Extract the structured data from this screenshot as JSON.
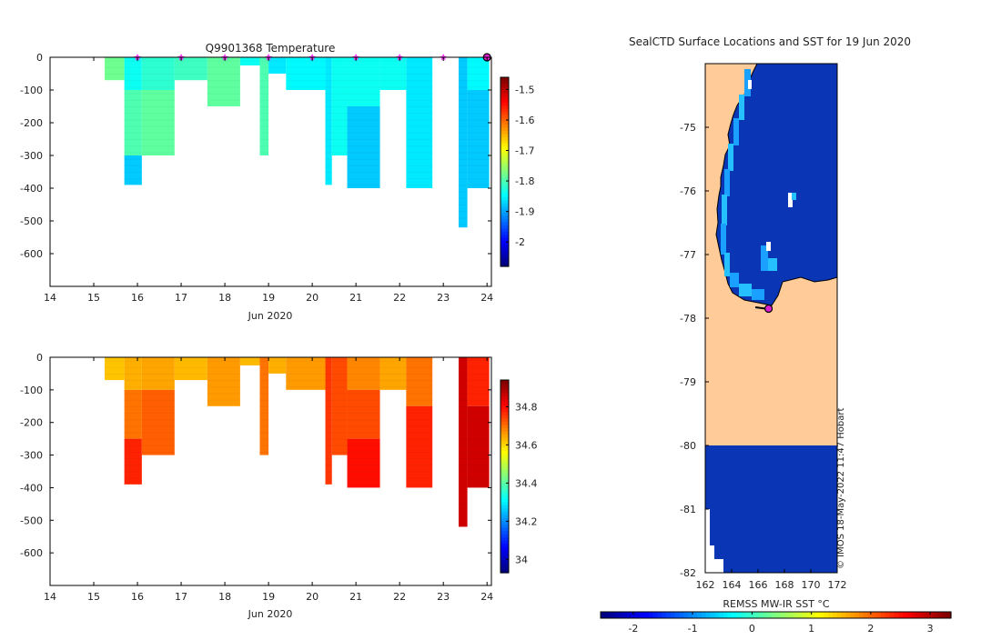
{
  "chart_data": [
    {
      "type": "heatmap",
      "title": "Q9901368  Temperature",
      "xlabel": "Jun 2020",
      "ylabel": "",
      "xlim": [
        14,
        24.1
      ],
      "ylim": [
        -700,
        0
      ],
      "x_ticks": [
        "14",
        "15",
        "16",
        "17",
        "18",
        "19",
        "20",
        "21",
        "22",
        "23",
        "24"
      ],
      "y_ticks": [
        "0",
        "-100",
        "-200",
        "-300",
        "-400",
        "-500",
        "-600"
      ],
      "colorbar_ticks": [
        "-1.5",
        "-1.6",
        "-1.7",
        "-1.8",
        "-1.9",
        "-2"
      ],
      "colorbar_range": [
        -2.08,
        -1.46
      ],
      "colormap": "jet",
      "marker_days": [
        16,
        17,
        18,
        19,
        20,
        21,
        22,
        23,
        24
      ],
      "profiles": [
        {
          "start": 15.25,
          "end": 15.7,
          "max_depth": 70,
          "layers": [
            [
              0,
              70,
              -1.78
            ]
          ]
        },
        {
          "start": 15.7,
          "end": 16.1,
          "max_depth": 390,
          "layers": [
            [
              0,
              100,
              -1.84
            ],
            [
              100,
              300,
              -1.8
            ],
            [
              300,
              390,
              -1.88
            ]
          ]
        },
        {
          "start": 16.1,
          "end": 16.85,
          "max_depth": 300,
          "layers": [
            [
              0,
              100,
              -1.82
            ],
            [
              100,
              300,
              -1.79
            ]
          ]
        },
        {
          "start": 16.85,
          "end": 17.6,
          "max_depth": 70,
          "layers": [
            [
              0,
              70,
              -1.81
            ]
          ]
        },
        {
          "start": 17.6,
          "end": 18.35,
          "max_depth": 150,
          "layers": [
            [
              0,
              150,
              -1.79
            ]
          ]
        },
        {
          "start": 18.35,
          "end": 18.8,
          "max_depth": 25,
          "layers": [
            [
              0,
              25,
              -1.84
            ]
          ]
        },
        {
          "start": 18.8,
          "end": 19.0,
          "max_depth": 300,
          "layers": [
            [
              0,
              300,
              -1.8
            ]
          ]
        },
        {
          "start": 19.0,
          "end": 19.4,
          "max_depth": 50,
          "layers": [
            [
              0,
              50,
              -1.86
            ]
          ]
        },
        {
          "start": 19.4,
          "end": 20.3,
          "max_depth": 100,
          "layers": [
            [
              0,
              100,
              -1.85
            ]
          ]
        },
        {
          "start": 20.3,
          "end": 20.45,
          "max_depth": 390,
          "layers": [
            [
              0,
              390,
              -1.86
            ]
          ]
        },
        {
          "start": 20.45,
          "end": 20.8,
          "max_depth": 300,
          "layers": [
            [
              0,
              300,
              -1.84
            ]
          ]
        },
        {
          "start": 20.8,
          "end": 21.55,
          "max_depth": 400,
          "layers": [
            [
              0,
              150,
              -1.84
            ],
            [
              150,
              400,
              -1.88
            ]
          ]
        },
        {
          "start": 21.55,
          "end": 22.15,
          "max_depth": 100,
          "layers": [
            [
              0,
              100,
              -1.84
            ]
          ]
        },
        {
          "start": 22.15,
          "end": 22.75,
          "max_depth": 400,
          "layers": [
            [
              0,
              400,
              -1.86
            ]
          ]
        },
        {
          "start": 23.35,
          "end": 23.55,
          "max_depth": 520,
          "layers": [
            [
              0,
              520,
              -1.88
            ]
          ]
        },
        {
          "start": 23.55,
          "end": 24.05,
          "max_depth": 400,
          "layers": [
            [
              0,
              100,
              -1.85
            ],
            [
              100,
              400,
              -1.88
            ]
          ]
        }
      ]
    },
    {
      "type": "heatmap",
      "title": "",
      "xlabel": "Jun 2020",
      "ylabel": "",
      "xlim": [
        14,
        24.1
      ],
      "ylim": [
        -700,
        0
      ],
      "x_ticks": [
        "14",
        "15",
        "16",
        "17",
        "18",
        "19",
        "20",
        "21",
        "22",
        "23",
        "24"
      ],
      "y_ticks": [
        "0",
        "-100",
        "-200",
        "-300",
        "-400",
        "-500",
        "-600"
      ],
      "colorbar_ticks": [
        "34.8",
        "34.6",
        "34.4",
        "34.2",
        "34"
      ],
      "colorbar_range": [
        33.93,
        34.94
      ],
      "colormap": "jet",
      "profiles": [
        {
          "start": 15.25,
          "end": 15.7,
          "max_depth": 70,
          "layers": [
            [
              0,
              70,
              34.62
            ]
          ]
        },
        {
          "start": 15.7,
          "end": 16.1,
          "max_depth": 390,
          "layers": [
            [
              0,
              100,
              34.64
            ],
            [
              100,
              250,
              34.7
            ],
            [
              250,
              390,
              34.78
            ]
          ]
        },
        {
          "start": 16.1,
          "end": 16.85,
          "max_depth": 300,
          "layers": [
            [
              0,
              100,
              34.65
            ],
            [
              100,
              300,
              34.72
            ]
          ]
        },
        {
          "start": 16.85,
          "end": 17.6,
          "max_depth": 70,
          "layers": [
            [
              0,
              70,
              34.63
            ]
          ]
        },
        {
          "start": 17.6,
          "end": 18.35,
          "max_depth": 150,
          "layers": [
            [
              0,
              150,
              34.66
            ]
          ]
        },
        {
          "start": 18.35,
          "end": 18.8,
          "max_depth": 25,
          "layers": [
            [
              0,
              25,
              34.63
            ]
          ]
        },
        {
          "start": 18.8,
          "end": 19.0,
          "max_depth": 300,
          "layers": [
            [
              0,
              300,
              34.7
            ]
          ]
        },
        {
          "start": 19.0,
          "end": 19.4,
          "max_depth": 50,
          "layers": [
            [
              0,
              50,
              34.64
            ]
          ]
        },
        {
          "start": 19.4,
          "end": 20.3,
          "max_depth": 100,
          "layers": [
            [
              0,
              100,
              34.66
            ]
          ]
        },
        {
          "start": 20.3,
          "end": 20.45,
          "max_depth": 390,
          "layers": [
            [
              0,
              390,
              34.76
            ]
          ]
        },
        {
          "start": 20.45,
          "end": 20.8,
          "max_depth": 300,
          "layers": [
            [
              0,
              300,
              34.74
            ]
          ]
        },
        {
          "start": 20.8,
          "end": 21.55,
          "max_depth": 400,
          "layers": [
            [
              0,
              100,
              34.68
            ],
            [
              100,
              250,
              34.74
            ],
            [
              250,
              400,
              34.8
            ]
          ]
        },
        {
          "start": 21.55,
          "end": 22.15,
          "max_depth": 100,
          "layers": [
            [
              0,
              100,
              34.65
            ]
          ]
        },
        {
          "start": 22.15,
          "end": 22.75,
          "max_depth": 400,
          "layers": [
            [
              0,
              150,
              34.7
            ],
            [
              150,
              400,
              34.78
            ]
          ]
        },
        {
          "start": 23.35,
          "end": 23.55,
          "max_depth": 520,
          "layers": [
            [
              0,
              520,
              34.86
            ]
          ]
        },
        {
          "start": 23.55,
          "end": 24.05,
          "max_depth": 400,
          "layers": [
            [
              0,
              150,
              34.78
            ],
            [
              150,
              400,
              34.86
            ]
          ]
        }
      ]
    },
    {
      "type": "map",
      "title": "SealCTD Surface Locations and SST for 19 Jun 2020",
      "xlabel": "",
      "colorbar_label": "REMSS MW-IR SST °C",
      "colorbar_ticks": [
        "-2",
        "-1",
        "0",
        "1",
        "2",
        "3"
      ],
      "colorbar_range": [
        -2.55,
        3.35
      ],
      "lon_range": [
        162,
        172
      ],
      "lat_range": [
        -82,
        -74
      ],
      "x_ticks": [
        "162",
        "164",
        "166",
        "168",
        "170",
        "172"
      ],
      "y_ticks": [
        "-75",
        "-76",
        "-77",
        "-78",
        "-79",
        "-80",
        "-81",
        "-82"
      ],
      "land_color": "#ffcc99",
      "sea_color": "#0a35b5",
      "sea_ice_edge_color": "#1aa0ff",
      "marker_position": {
        "lon": 166.8,
        "lat": -77.85
      },
      "credit": "© IMOS 18-May-2022 11:47 Hobart"
    }
  ]
}
